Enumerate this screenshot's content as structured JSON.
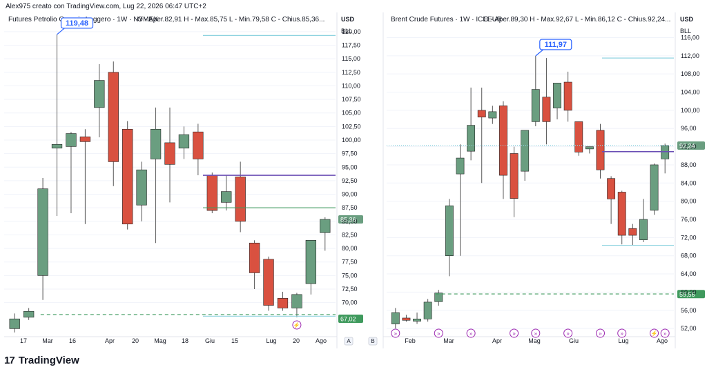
{
  "header": {
    "credit": "Alex975 creato con TradingView.com, Lug 22, 2026 06:47 UTC+2"
  },
  "footer": {
    "brand": "TradingView",
    "brand_mark": "17"
  },
  "colors": {
    "up": "#6a9e80",
    "down": "#d95140",
    "purple": "#6b4fb5",
    "green": "#3f9a5d",
    "cyan": "#8fd3e0",
    "axis_text": "#131722",
    "grid": "#f0f3fa",
    "label": "#2962ff"
  },
  "chart_data": [
    {
      "type": "candlestick",
      "title": "Futures Petrolio Greggio Leggero · 1W · NYMEX",
      "ohlc_label": "O - Aper.82,91  H - Max.85,75  L - Min.79,58  C - Chius.85,36...",
      "currency": "USD",
      "unit": "BLL",
      "ylim": [
        65.5,
        121
      ],
      "yticks": [
        "120,00",
        "117,50",
        "115,00",
        "112,50",
        "110,00",
        "107,50",
        "105,00",
        "102,50",
        "100,00",
        "97,50",
        "95,00",
        "92,50",
        "90,00",
        "87,50",
        "85,00",
        "82,50",
        "80,00",
        "77,50",
        "75,00",
        "72,50",
        "70,00"
      ],
      "xticks": [
        "17",
        "Mar",
        "16",
        "Apr",
        "20",
        "Mag",
        "18",
        "Giu",
        "15",
        "Lug",
        "20",
        "Ago"
      ],
      "x_extra": [
        "A",
        "B"
      ],
      "candles": [
        {
          "o": 65.2,
          "h": 68.0,
          "l": 64.5,
          "c": 67.0
        },
        {
          "o": 67.3,
          "h": 69.0,
          "l": 66.8,
          "c": 68.4
        },
        {
          "o": 75.0,
          "h": 93.0,
          "l": 70.5,
          "c": 91.0
        },
        {
          "o": 98.5,
          "h": 119.48,
          "l": 86.0,
          "c": 99.2
        },
        {
          "o": 98.8,
          "h": 101.5,
          "l": 86.5,
          "c": 101.2
        },
        {
          "o": 100.6,
          "h": 102.0,
          "l": 84.5,
          "c": 99.7
        },
        {
          "o": 106.0,
          "h": 114.0,
          "l": 100.5,
          "c": 111.0
        },
        {
          "o": 112.5,
          "h": 114.5,
          "l": 91.5,
          "c": 96.0
        },
        {
          "o": 102.0,
          "h": 103.5,
          "l": 83.5,
          "c": 84.5
        },
        {
          "o": 88.0,
          "h": 96.0,
          "l": 85.0,
          "c": 94.5
        },
        {
          "o": 96.5,
          "h": 106.0,
          "l": 81.0,
          "c": 102.0
        },
        {
          "o": 99.5,
          "h": 106.0,
          "l": 88.5,
          "c": 95.5
        },
        {
          "o": 98.5,
          "h": 102.5,
          "l": 96.5,
          "c": 101.0
        },
        {
          "o": 101.5,
          "h": 103.0,
          "l": 93.5,
          "c": 96.5
        },
        {
          "o": 93.5,
          "h": 94.0,
          "l": 86.5,
          "c": 87.0
        },
        {
          "o": 88.5,
          "h": 93.5,
          "l": 87.0,
          "c": 90.5
        },
        {
          "o": 93.2,
          "h": 96.0,
          "l": 83.0,
          "c": 85.0
        },
        {
          "o": 81.0,
          "h": 81.5,
          "l": 72.5,
          "c": 75.5
        },
        {
          "o": 78.0,
          "h": 78.5,
          "l": 68.5,
          "c": 69.5
        },
        {
          "o": 70.8,
          "h": 72.0,
          "l": 68.5,
          "c": 69.0
        },
        {
          "o": 69.0,
          "h": 71.8,
          "l": 67.3,
          "c": 71.5
        },
        {
          "o": 73.5,
          "h": 81.5,
          "l": 71.5,
          "c": 81.5
        },
        {
          "o": 82.91,
          "h": 85.75,
          "l": 79.58,
          "c": 85.36
        }
      ],
      "hlines": [
        {
          "y": 119.3,
          "color": "cyan",
          "style": "solid",
          "from": 0.6
        },
        {
          "y": 93.5,
          "color": "purple",
          "style": "solid",
          "from": 0.6
        },
        {
          "y": 87.5,
          "color": "green",
          "style": "solid",
          "from": 0.6
        },
        {
          "y": 67.8,
          "color": "green",
          "style": "dashed",
          "from": 0.11
        },
        {
          "y": 67.5,
          "color": "cyan",
          "style": "solid",
          "from": 0.6
        }
      ],
      "price_labels": [
        {
          "y": 85.36,
          "text": "85,36",
          "kind": "up"
        },
        {
          "y": 67.02,
          "text": "67,02",
          "kind": "green"
        }
      ],
      "callout": {
        "text": "119,48",
        "candle": 3
      },
      "events": [
        {
          "candle": 20,
          "kind": "bolt"
        }
      ]
    },
    {
      "type": "candlestick",
      "title": "Brent Crude Futures · 1W · ICEEUR",
      "ohlc_label": "O - Aper.89,30  H - Max.92,67  L - Min.86,12  C - Chius.92,24...",
      "currency": "USD",
      "unit": "BLL",
      "ylim": [
        50.5,
        118.5
      ],
      "yticks": [
        "116,00",
        "112,00",
        "108,00",
        "104,00",
        "100,00",
        "96,00",
        "92,00",
        "88,00",
        "84,00",
        "80,00",
        "76,00",
        "72,00",
        "68,00",
        "64,00",
        "60,00",
        "56,00",
        "52,00"
      ],
      "xticks": [
        "Feb",
        "Mar",
        "Apr",
        "Mag",
        "Giu",
        "Lug",
        "Ago"
      ],
      "candles": [
        {
          "o": 53.0,
          "h": 56.5,
          "l": 52.0,
          "c": 55.5
        },
        {
          "o": 54.3,
          "h": 55.0,
          "l": 53.5,
          "c": 53.8
        },
        {
          "o": 53.6,
          "h": 55.5,
          "l": 53.0,
          "c": 54.1
        },
        {
          "o": 54.1,
          "h": 58.5,
          "l": 53.5,
          "c": 57.8
        },
        {
          "o": 57.9,
          "h": 60.5,
          "l": 57.0,
          "c": 59.8
        },
        {
          "o": 68.0,
          "h": 80.5,
          "l": 63.5,
          "c": 79.0
        },
        {
          "o": 86.0,
          "h": 92.5,
          "l": 68.0,
          "c": 89.5
        },
        {
          "o": 91.0,
          "h": 105.0,
          "l": 89.0,
          "c": 96.7
        },
        {
          "o": 100.0,
          "h": 105.0,
          "l": 84.0,
          "c": 98.5
        },
        {
          "o": 98.3,
          "h": 101.0,
          "l": 97.0,
          "c": 99.7
        },
        {
          "o": 101.0,
          "h": 102.0,
          "l": 80.5,
          "c": 85.7
        },
        {
          "o": 90.5,
          "h": 92.0,
          "l": 76.5,
          "c": 80.6
        },
        {
          "o": 86.6,
          "h": 95.0,
          "l": 84.5,
          "c": 95.6
        },
        {
          "o": 97.5,
          "h": 111.97,
          "l": 96.5,
          "c": 104.6
        },
        {
          "o": 102.9,
          "h": 111.5,
          "l": 92.5,
          "c": 97.5
        },
        {
          "o": 100.5,
          "h": 106.0,
          "l": 98.0,
          "c": 106.0
        },
        {
          "o": 106.2,
          "h": 108.5,
          "l": 97.5,
          "c": 100.0
        },
        {
          "o": 97.5,
          "h": 97.5,
          "l": 90.0,
          "c": 90.8
        },
        {
          "o": 91.5,
          "h": 92.0,
          "l": 90.5,
          "c": 92.0
        },
        {
          "o": 95.6,
          "h": 97.0,
          "l": 85.0,
          "c": 86.9
        },
        {
          "o": 85.0,
          "h": 85.5,
          "l": 75.0,
          "c": 80.5
        },
        {
          "o": 82.0,
          "h": 82.3,
          "l": 70.5,
          "c": 72.5
        },
        {
          "o": 74.0,
          "h": 75.0,
          "l": 70.3,
          "c": 72.5
        },
        {
          "o": 71.5,
          "h": 80.5,
          "l": 71.0,
          "c": 76.0
        },
        {
          "o": 78.0,
          "h": 88.3,
          "l": 77.0,
          "c": 88.0
        },
        {
          "o": 89.3,
          "h": 92.67,
          "l": 86.12,
          "c": 92.24
        }
      ],
      "hlines": [
        {
          "y": 111.5,
          "color": "cyan",
          "style": "solid",
          "from": 0.75
        },
        {
          "y": 92.3,
          "color": "cyan",
          "style": "dotted",
          "from": 0.0
        },
        {
          "y": 90.9,
          "color": "purple",
          "style": "solid",
          "from": 0.75
        },
        {
          "y": 70.3,
          "color": "cyan",
          "style": "solid",
          "from": 0.75
        },
        {
          "y": 59.6,
          "color": "green",
          "style": "dashed",
          "from": 0.17
        }
      ],
      "price_labels": [
        {
          "y": 92.24,
          "text": "92,24",
          "kind": "up"
        },
        {
          "y": 59.56,
          "text": "59,56",
          "kind": "green"
        }
      ],
      "callout": {
        "text": "111,97",
        "candle": 13
      },
      "events": [
        {
          "candle": 0,
          "kind": "arrow"
        },
        {
          "candle": 4,
          "kind": "arrow"
        },
        {
          "candle": 7,
          "kind": "arrow"
        },
        {
          "candle": 11,
          "kind": "arrow"
        },
        {
          "candle": 13,
          "kind": "arrow"
        },
        {
          "candle": 16,
          "kind": "arrow"
        },
        {
          "candle": 19,
          "kind": "arrow"
        },
        {
          "candle": 21,
          "kind": "arrow"
        },
        {
          "candle": 24,
          "kind": "bolt"
        },
        {
          "candle": 25,
          "kind": "arrow"
        }
      ]
    }
  ]
}
